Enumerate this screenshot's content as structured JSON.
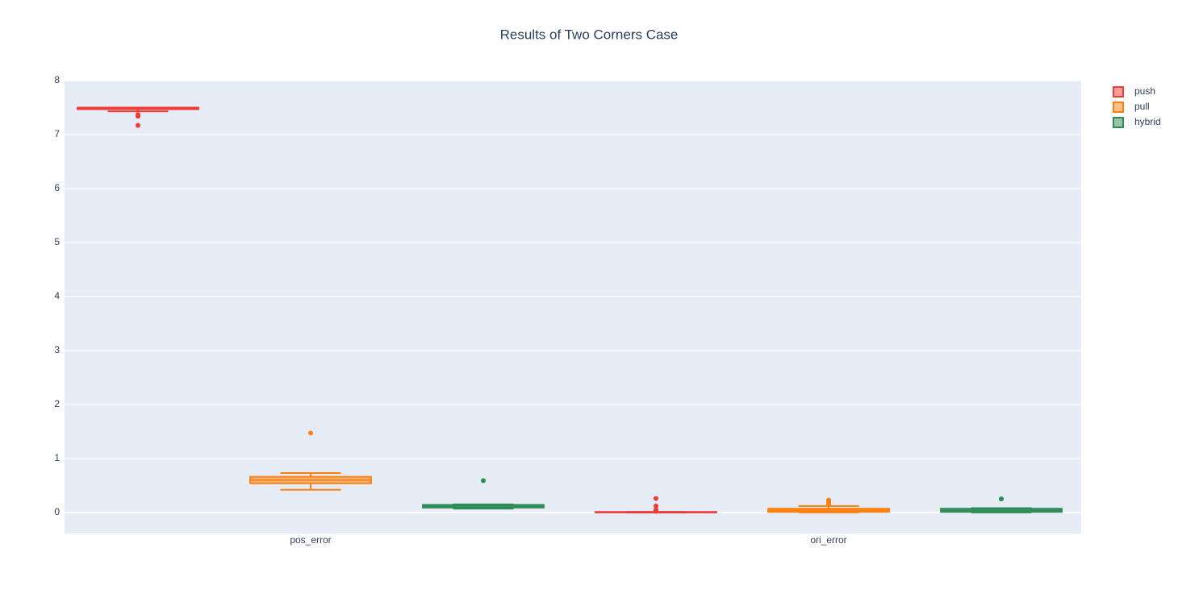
{
  "chart_data": {
    "type": "box",
    "title": "Results of Two Corners Case",
    "categories": [
      "pos_error",
      "ori_error"
    ],
    "ylim": [
      -0.39,
      8.0
    ],
    "yticks": [
      0,
      1,
      2,
      3,
      4,
      5,
      6,
      7,
      8
    ],
    "grid": true,
    "legend": "top-right",
    "series": [
      {
        "name": "push",
        "color": "#ef3b36",
        "lowerfence": [
          7.43,
          0.0
        ],
        "q1": [
          7.47,
          0.0
        ],
        "median": [
          7.48,
          0.005
        ],
        "q3": [
          7.5,
          0.01
        ],
        "upperfence": [
          7.5,
          0.01
        ],
        "outliers": [
          [
            7.37,
            7.34,
            7.17
          ],
          [
            0.26,
            0.12,
            0.05,
            0.02
          ]
        ]
      },
      {
        "name": "pull",
        "color": "#ff7f0e",
        "lowerfence": [
          0.42,
          0.0
        ],
        "q1": [
          0.54,
          0.01
        ],
        "median": [
          0.6,
          0.04
        ],
        "q3": [
          0.66,
          0.07
        ],
        "upperfence": [
          0.73,
          0.12
        ],
        "outliers": [
          [
            1.47
          ],
          [
            0.23,
            0.19,
            0.15
          ]
        ]
      },
      {
        "name": "hybrid",
        "color": "#2e8b57",
        "lowerfence": [
          0.07,
          0.0
        ],
        "q1": [
          0.09,
          0.01
        ],
        "median": [
          0.12,
          0.04
        ],
        "q3": [
          0.14,
          0.07
        ],
        "upperfence": [
          0.15,
          0.08
        ],
        "outliers": [
          [
            0.59
          ],
          [
            0.25
          ]
        ]
      }
    ]
  }
}
